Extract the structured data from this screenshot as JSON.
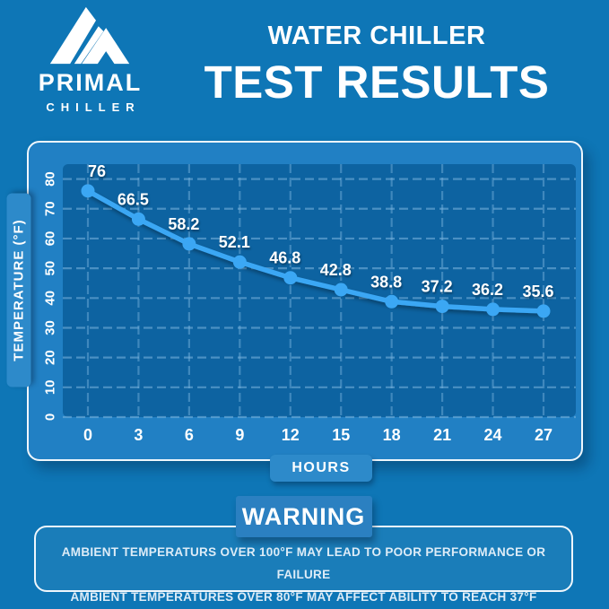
{
  "colors": {
    "bg": "#0e76b6",
    "panel": "#2180c4",
    "plot": "#0d63a1",
    "grid": "#7db6e0",
    "line": "#3ba7f4",
    "pill": "#2d8aca",
    "badge": "#2b80c1",
    "border": "#eef6fc",
    "text": "#ffffff",
    "warn_text": "#ddecf7"
  },
  "brand": {
    "name": "PRIMAL",
    "subname": "CHILLER",
    "logo_icon": "mountain-icon"
  },
  "header": {
    "line1": "WATER CHILLER",
    "line2": "TEST RESULTS"
  },
  "chart_data": {
    "type": "line",
    "x": [
      0,
      3,
      6,
      9,
      12,
      15,
      18,
      21,
      24,
      27
    ],
    "values": [
      76,
      66.5,
      58.2,
      52.1,
      46.8,
      42.8,
      38.8,
      37.2,
      36.2,
      35.6
    ],
    "point_labels": [
      "76",
      "66.5",
      "58.2",
      "52.1",
      "46.8",
      "42.8",
      "38.8",
      "37.2",
      "36.2",
      "35.6"
    ],
    "xlabel": "HOURS",
    "ylabel": "TEMPERATURE (°F)",
    "xticks": [
      0,
      3,
      6,
      9,
      12,
      15,
      18,
      21,
      24,
      27
    ],
    "yticks": [
      0,
      10,
      20,
      30,
      40,
      50,
      60,
      70,
      80
    ],
    "ylim": [
      0,
      85
    ],
    "grid": true,
    "legend": "none",
    "line_color": "#3ba7f4"
  },
  "warning": {
    "title": "WARNING",
    "line1": "AMBIENT TEMPERATURS OVER 100°F MAY LEAD TO POOR PERFORMANCE OR FAILURE",
    "line2": "AMBIENT TEMPERATURES OVER 80°F MAY AFFECT ABILITY TO REACH 37°F"
  }
}
